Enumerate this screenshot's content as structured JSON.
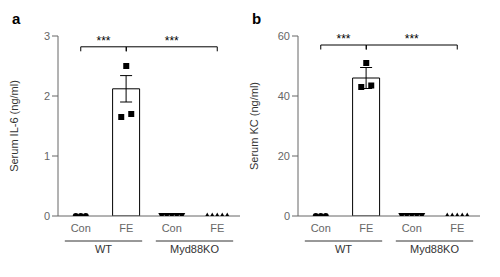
{
  "chart_data": [
    {
      "type": "bar",
      "title": "a",
      "ylabel": "Serum IL-6 (ng/ml)",
      "categories": [
        "Con",
        "FE",
        "Con",
        "FE"
      ],
      "series": [
        {
          "type": "bar",
          "color": "white",
          "values": [
            null,
            2.12,
            null,
            null
          ],
          "error": [
            null,
            0.22,
            null,
            null
          ]
        },
        {
          "type": "scatter",
          "marker": "circle",
          "color": "black",
          "values": [
            [
              0,
              0,
              0
            ],
            null,
            null,
            null
          ]
        },
        {
          "type": "scatter",
          "marker": "square",
          "color": "black",
          "values": [
            null,
            [
              1.65,
              2.5,
              1.7
            ],
            null,
            null
          ]
        },
        {
          "type": "scatter",
          "marker": "triangle-down",
          "color": "black",
          "values": [
            null,
            null,
            [
              0,
              0,
              0,
              0,
              0
            ],
            null
          ]
        },
        {
          "type": "scatter",
          "marker": "triangle-up",
          "color": "black",
          "values": [
            null,
            null,
            null,
            [
              0,
              0,
              0,
              0,
              0
            ]
          ]
        }
      ],
      "ylim": [
        0,
        3
      ],
      "yticks": [
        0,
        1,
        2,
        3
      ],
      "grid": false,
      "groups": [
        {
          "label": "WT",
          "span": [
            0,
            1
          ]
        },
        {
          "label": "Myd88KO",
          "span": [
            2,
            3
          ]
        }
      ],
      "significance": [
        {
          "from": 0,
          "to": 1,
          "y": 2.82,
          "label": "***"
        },
        {
          "from": 1,
          "to": 3,
          "y": 2.82,
          "label": "***"
        }
      ]
    },
    {
      "type": "bar",
      "title": "b",
      "ylabel": "Serum KC (ng/ml)",
      "categories": [
        "Con",
        "FE",
        "Con",
        "FE"
      ],
      "series": [
        {
          "type": "bar",
          "color": "white",
          "values": [
            null,
            46.0,
            null,
            null
          ],
          "error": [
            null,
            3.5,
            null,
            null
          ]
        },
        {
          "type": "scatter",
          "marker": "circle",
          "color": "black",
          "values": [
            [
              0,
              0,
              0
            ],
            null,
            null,
            null
          ]
        },
        {
          "type": "scatter",
          "marker": "square",
          "color": "black",
          "values": [
            null,
            [
              43.0,
              51.0,
              43.5
            ],
            null,
            null
          ]
        },
        {
          "type": "scatter",
          "marker": "triangle-down",
          "color": "black",
          "values": [
            null,
            null,
            [
              0,
              0,
              0,
              0,
              0
            ],
            null
          ]
        },
        {
          "type": "scatter",
          "marker": "triangle-up",
          "color": "black",
          "values": [
            null,
            null,
            null,
            [
              0,
              0,
              0,
              0,
              0
            ]
          ]
        }
      ],
      "ylim": [
        0,
        60
      ],
      "yticks": [
        0,
        20,
        40,
        60
      ],
      "grid": false,
      "groups": [
        {
          "label": "WT",
          "span": [
            0,
            1
          ]
        },
        {
          "label": "Myd88KO",
          "span": [
            2,
            3
          ]
        }
      ],
      "significance": [
        {
          "from": 0,
          "to": 1,
          "y": 57,
          "label": "***"
        },
        {
          "from": 1,
          "to": 3,
          "y": 57,
          "label": "***"
        }
      ]
    }
  ]
}
